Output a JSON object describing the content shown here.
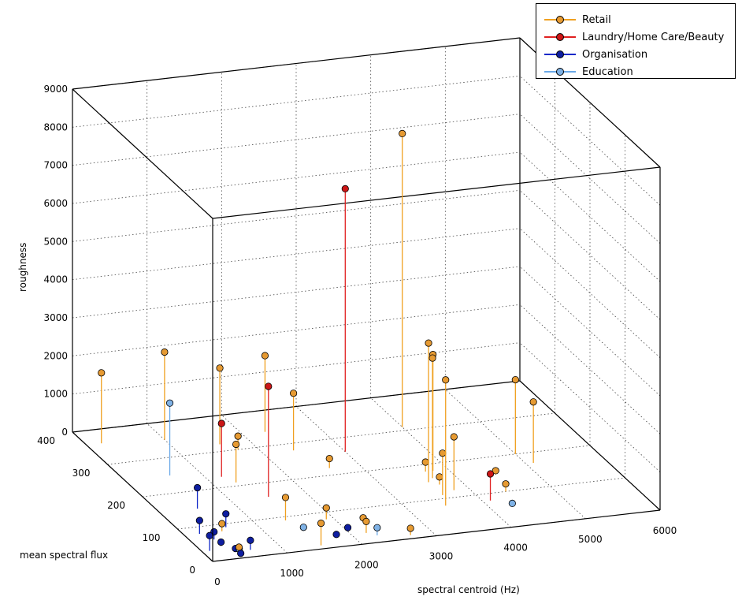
{
  "chart_data": {
    "type": "scatter",
    "subtype": "3d-stem",
    "xlabel": "spectral centroid (Hz)",
    "ylabel": "mean spectral flux",
    "zlabel": "roughness",
    "xlim": [
      0,
      6000
    ],
    "ylim": [
      0,
      400
    ],
    "zlim": [
      0,
      9000
    ],
    "xticks": [
      "0",
      "1000",
      "2000",
      "3000",
      "4000",
      "5000",
      "6000"
    ],
    "yticks": [
      "0",
      "100",
      "200",
      "300",
      "400"
    ],
    "zticks": [
      "0",
      "1000",
      "2000",
      "3000",
      "4000",
      "5000",
      "6000",
      "7000",
      "8000",
      "9000"
    ],
    "grid": true,
    "legend_position": "top-right",
    "series": [
      {
        "name": "Retail",
        "color": "#F0A020",
        "marker_color": "#E69A32",
        "points": [
          {
            "x": 200,
            "y": 360,
            "z": 1850
          },
          {
            "x": 1000,
            "y": 350,
            "z": 2300
          },
          {
            "x": 1600,
            "y": 320,
            "z": 2000
          },
          {
            "x": 2300,
            "y": 340,
            "z": 2000
          },
          {
            "x": 2400,
            "y": 280,
            "z": 1500
          },
          {
            "x": 4000,
            "y": 310,
            "z": 7700
          },
          {
            "x": 3600,
            "y": 150,
            "z": 3650
          },
          {
            "x": 3700,
            "y": 160,
            "z": 3150
          },
          {
            "x": 3800,
            "y": 180,
            "z": 3050
          },
          {
            "x": 3500,
            "y": 80,
            "z": 3300
          },
          {
            "x": 3800,
            "y": 120,
            "z": 1400
          },
          {
            "x": 3600,
            "y": 110,
            "z": 1100
          },
          {
            "x": 1300,
            "y": 210,
            "z": 1000
          },
          {
            "x": 1750,
            "y": 300,
            "z": 350
          },
          {
            "x": 1400,
            "y": 90,
            "z": 600
          },
          {
            "x": 2600,
            "y": 220,
            "z": 250
          },
          {
            "x": 3700,
            "y": 180,
            "z": 250
          },
          {
            "x": 3700,
            "y": 140,
            "z": 200
          },
          {
            "x": 1500,
            "y": 10,
            "z": 580
          },
          {
            "x": 1900,
            "y": 80,
            "z": 300
          },
          {
            "x": 2200,
            "y": 30,
            "z": 300
          },
          {
            "x": 2300,
            "y": 60,
            "z": 120
          },
          {
            "x": 2700,
            "y": 10,
            "z": 180
          },
          {
            "x": 5000,
            "y": 200,
            "z": 1950
          },
          {
            "x": 5100,
            "y": 170,
            "z": 1600
          },
          {
            "x": 4400,
            "y": 100,
            "z": 200
          },
          {
            "x": 4500,
            "y": 150,
            "z": 100
          },
          {
            "x": 500,
            "y": 80,
            "z": 200
          },
          {
            "x": 400,
            "y": 10,
            "z": 200
          }
        ]
      },
      {
        "name": "Laundry/Home Care/Beauty",
        "color": "#E02020",
        "marker_color": "#CC1616",
        "points": [
          {
            "x": 3000,
            "y": 260,
            "z": 6900
          },
          {
            "x": 1500,
            "y": 160,
            "z": 2900
          },
          {
            "x": 1200,
            "y": 230,
            "z": 1400
          },
          {
            "x": 4100,
            "y": 80,
            "z": 700
          }
        ]
      },
      {
        "name": "Organisation",
        "color": "#1028C8",
        "marker_color": "#0E1EA0",
        "points": [
          {
            "x": 500,
            "y": 150,
            "z": 550
          },
          {
            "x": 200,
            "y": 80,
            "z": 350
          },
          {
            "x": 100,
            "y": 30,
            "z": 400
          },
          {
            "x": 600,
            "y": 90,
            "z": 350
          },
          {
            "x": 300,
            "y": 60,
            "z": 200
          },
          {
            "x": 300,
            "y": 40,
            "z": 100
          },
          {
            "x": 600,
            "y": 20,
            "z": 250
          },
          {
            "x": 400,
            "y": 20,
            "z": 80
          },
          {
            "x": 400,
            "y": 5,
            "z": 80
          },
          {
            "x": 2000,
            "y": 40,
            "z": 100
          },
          {
            "x": 1800,
            "y": 30,
            "z": 50
          }
        ]
      },
      {
        "name": "Education",
        "color": "#6AA8E8",
        "marker_color": "#7FB2E6",
        "points": [
          {
            "x": 600,
            "y": 250,
            "z": 1900
          },
          {
            "x": 1500,
            "y": 60,
            "z": 50
          },
          {
            "x": 2300,
            "y": 20,
            "z": 200
          },
          {
            "x": 4300,
            "y": 60,
            "z": 50
          },
          {
            "x": 450,
            "y": 20,
            "z": 60
          }
        ]
      }
    ]
  }
}
